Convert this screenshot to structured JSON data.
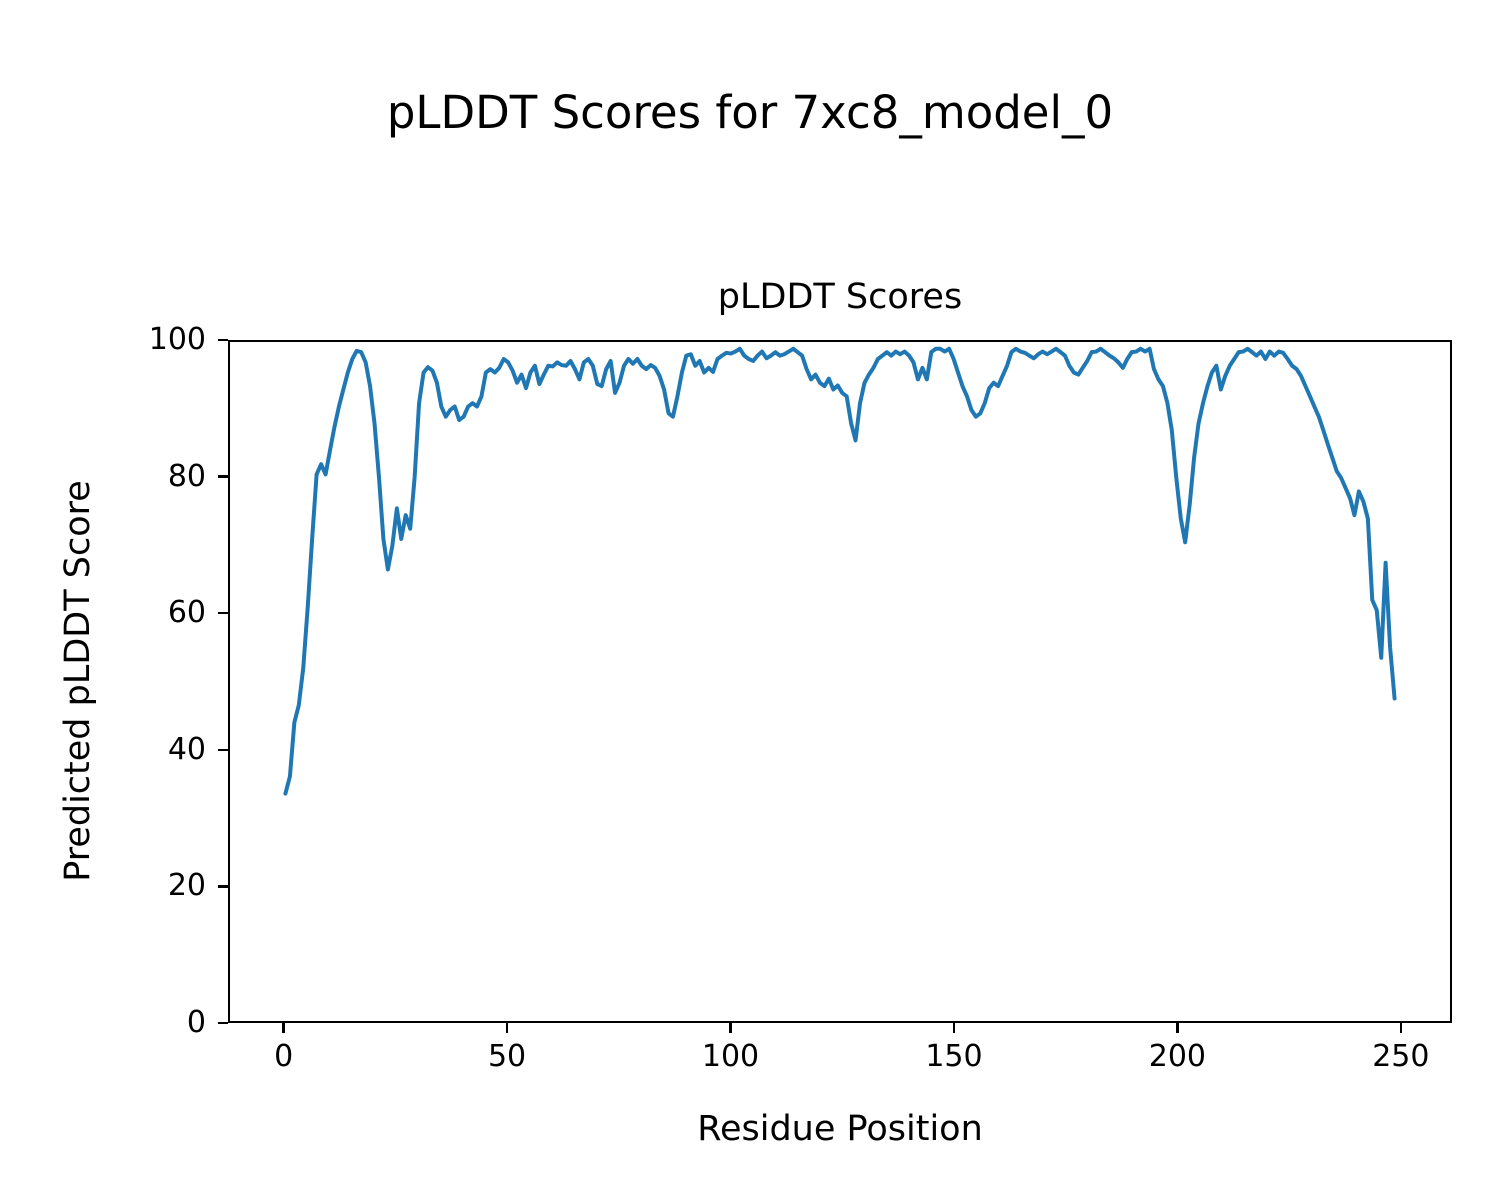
{
  "figure": {
    "suptitle": "pLDDT Scores for 7xc8_model_0",
    "background_color": "#ffffff",
    "text_color": "#000000"
  },
  "chart_data": {
    "type": "line",
    "title": "pLDDT Scores",
    "xlabel": "Residue Position",
    "ylabel": "Predicted pLDDT Score",
    "xlim": [
      -12.45,
      261.45
    ],
    "ylim": [
      0,
      100
    ],
    "xticks": [
      0,
      50,
      100,
      150,
      200,
      250
    ],
    "yticks": [
      0,
      20,
      40,
      60,
      80,
      100
    ],
    "grid": false,
    "legend": "none",
    "series": [
      {
        "name": "pLDDT",
        "color": "#1f77b4",
        "line_width": 4,
        "x_start": 0,
        "x_step": 1,
        "y": [
          33.5,
          36,
          44,
          46.5,
          52,
          61,
          71,
          80.5,
          82,
          80.5,
          84,
          87.5,
          90.5,
          93,
          95.5,
          97.5,
          98.7,
          98.5,
          97,
          93.5,
          88,
          80,
          71,
          66.5,
          70,
          75.5,
          71,
          74.5,
          72.5,
          80,
          91,
          95.5,
          96.3,
          95.8,
          94,
          90.5,
          89,
          90,
          90.5,
          88.5,
          89,
          90.5,
          91,
          90.5,
          92,
          95.5,
          96,
          95.5,
          96.2,
          97.5,
          97,
          95.8,
          94,
          95.2,
          93.2,
          95.5,
          96.5,
          93.8,
          95.2,
          96.5,
          96.4,
          97,
          96.6,
          96.5,
          97.2,
          96,
          94.5,
          97,
          97.5,
          96.5,
          93.8,
          93.5,
          96,
          97.2,
          92.5,
          94,
          96.5,
          97.5,
          96.8,
          97.5,
          96.5,
          96,
          96.6,
          96.2,
          95,
          93,
          89.5,
          89,
          92,
          95.5,
          98,
          98.2,
          96.5,
          97.2,
          95.5,
          96.2,
          95.6,
          97.5,
          98,
          98.4,
          98.3,
          98.6,
          99,
          98,
          97.5,
          97.2,
          98,
          98.6,
          97.6,
          98,
          98.5,
          98,
          98.2,
          98.6,
          99,
          98.5,
          98,
          96,
          94.5,
          95.2,
          94,
          93.5,
          94.6,
          93,
          93.6,
          92.5,
          92,
          88,
          85.5,
          91,
          94,
          95.2,
          96.2,
          97.5,
          98,
          98.5,
          98,
          98.6,
          98.2,
          98.6,
          98,
          97,
          94.5,
          96.2,
          94.5,
          98.5,
          99,
          99,
          98.6,
          99,
          97.5,
          95.5,
          93.5,
          92,
          90,
          89,
          89.5,
          91,
          93.2,
          94,
          93.5,
          95,
          96.5,
          98.5,
          99,
          98.6,
          98.4,
          98,
          97.6,
          98.2,
          98.6,
          98.2,
          98.6,
          99,
          98.5,
          98,
          96.5,
          95.5,
          95.2,
          96.2,
          97.2,
          98.5,
          98.6,
          99,
          98.5,
          98,
          97.6,
          97,
          96.2,
          97.5,
          98.5,
          98.6,
          99,
          98.6,
          99,
          96,
          94.5,
          93.5,
          91,
          87,
          80,
          74,
          70.5,
          76,
          83,
          88,
          91,
          93.5,
          95.5,
          96.5,
          93,
          95,
          96.5,
          97.5,
          98.5,
          98.6,
          99,
          98.5,
          98,
          98.6,
          97.5,
          98.6,
          98,
          98.6,
          98.4,
          97.5,
          96.5,
          96,
          95,
          93.5,
          92,
          90.5,
          89,
          87,
          85,
          83,
          81,
          80,
          78.5,
          77,
          74.5,
          78,
          76.5,
          74,
          62,
          60.5,
          53.5,
          67.5,
          55,
          47.5
        ]
      }
    ]
  }
}
